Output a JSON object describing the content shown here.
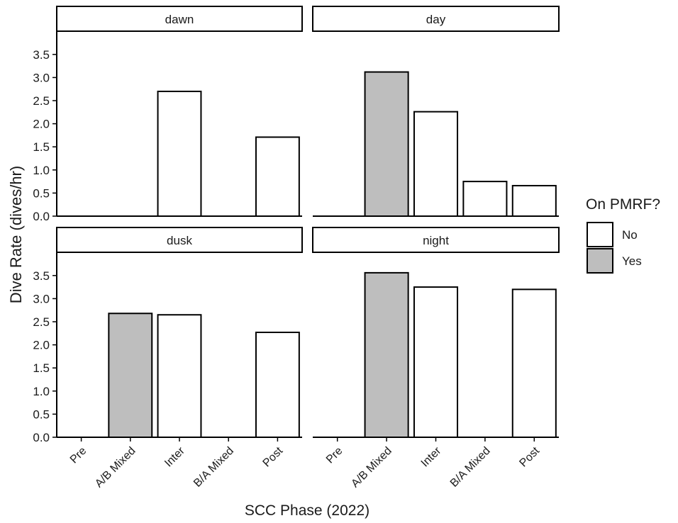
{
  "chart_data": {
    "type": "bar",
    "xlabel": "SCC Phase (2022)",
    "ylabel": "Dive Rate (dives/hr)",
    "categories": [
      "Pre",
      "A/B Mixed",
      "Inter",
      "B/A Mixed",
      "Post"
    ],
    "ylim": [
      0,
      3.9
    ],
    "yticks": [
      "0.0",
      "0.5",
      "1.0",
      "1.5",
      "2.0",
      "2.5",
      "3.0",
      "3.5"
    ],
    "grid": false,
    "facets": [
      {
        "title": "dawn",
        "values": [
          null,
          null,
          2.7,
          null,
          1.71
        ],
        "on_pmrf": [
          null,
          null,
          "No",
          null,
          "No"
        ]
      },
      {
        "title": "day",
        "values": [
          null,
          3.12,
          2.26,
          0.75,
          0.66
        ],
        "on_pmrf": [
          null,
          "Yes",
          "No",
          "No",
          "No"
        ]
      },
      {
        "title": "dusk",
        "values": [
          null,
          2.68,
          2.65,
          null,
          2.27
        ],
        "on_pmrf": [
          null,
          "Yes",
          "No",
          null,
          "No"
        ]
      },
      {
        "title": "night",
        "values": [
          null,
          3.56,
          3.25,
          null,
          3.2
        ],
        "on_pmrf": [
          null,
          "Yes",
          "No",
          null,
          "No"
        ]
      }
    ],
    "legend": {
      "title": "On PMRF?",
      "position": "right",
      "items": [
        {
          "label": "No",
          "color": "#ffffff"
        },
        {
          "label": "Yes",
          "color": "#bebebe"
        }
      ]
    }
  }
}
